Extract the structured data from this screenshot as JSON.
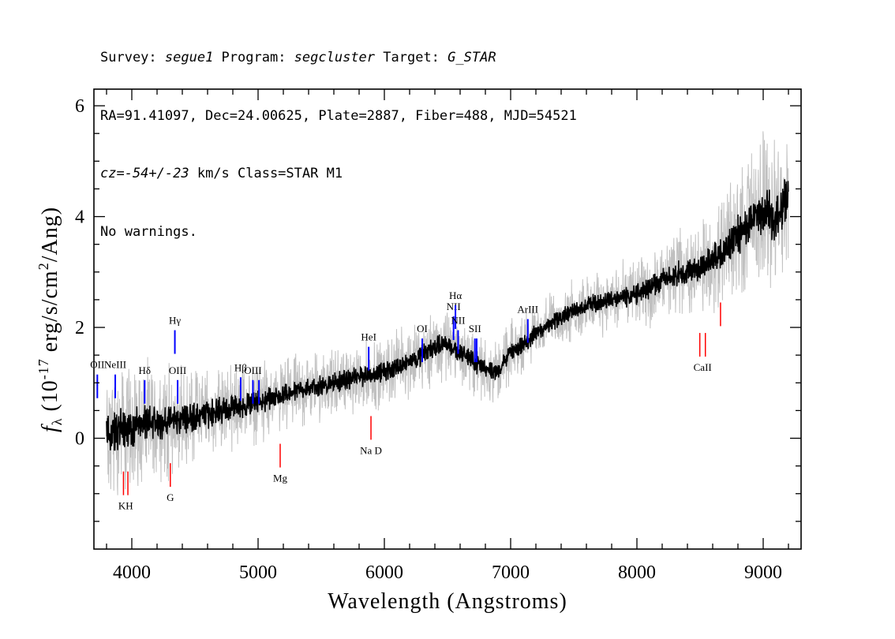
{
  "header": {
    "line1": {
      "p1": "Survey: ",
      "survey": "segue1",
      "p2": " Program: ",
      "program": "segcluster",
      "p3": " Target: ",
      "target": "G_STAR"
    },
    "line2": "RA=91.41097, Dec=24.00625, Plate=2887, Fiber=488, MJD=54521",
    "line3": {
      "cz": "cz=-54+/-23",
      "rest": " km/s Class=STAR M1"
    },
    "line4": "No warnings."
  },
  "chart_data": {
    "type": "line",
    "xlabel": "Wavelength (Angstroms)",
    "ylabel_parts": {
      "f": "f",
      "sub": "λ",
      "pre": " (10",
      "exp": "-17",
      "mid": " erg/s/cm",
      "exp2": "2",
      "post": "/Ang)"
    },
    "xlim": [
      3700,
      9300
    ],
    "ylim": [
      -2,
      6.3
    ],
    "x_ticks": [
      4000,
      5000,
      6000,
      7000,
      8000,
      9000
    ],
    "x_tick_labels": [
      "4000",
      "5000",
      "6000",
      "7000",
      "8000",
      "9000"
    ],
    "y_ticks": [
      0,
      2,
      4,
      6
    ],
    "y_tick_labels": [
      "0",
      "2",
      "4",
      "6"
    ],
    "series": [
      {
        "role": "flux",
        "color": "#000000",
        "x": [
          3800,
          3900,
          4000,
          4100,
          4200,
          4300,
          4400,
          4500,
          4600,
          4700,
          4800,
          4900,
          5000,
          5100,
          5200,
          5300,
          5400,
          5500,
          5600,
          5700,
          5800,
          5900,
          6000,
          6100,
          6200,
          6300,
          6400,
          6500,
          6600,
          6700,
          6800,
          6900,
          7000,
          7100,
          7200,
          7300,
          7400,
          7500,
          7600,
          7700,
          7800,
          7900,
          8000,
          8100,
          8200,
          8300,
          8400,
          8500,
          8600,
          8700,
          8800,
          8900,
          9000,
          9100,
          9200
        ],
        "y": [
          0.0,
          0.15,
          0.2,
          0.25,
          0.3,
          0.3,
          0.35,
          0.4,
          0.45,
          0.5,
          0.55,
          0.6,
          0.65,
          0.7,
          0.75,
          0.85,
          0.9,
          0.95,
          1.0,
          1.05,
          1.1,
          1.15,
          1.2,
          1.3,
          1.4,
          1.5,
          1.65,
          1.7,
          1.55,
          1.4,
          1.25,
          1.2,
          1.55,
          1.7,
          1.9,
          2.05,
          2.2,
          2.3,
          2.4,
          2.45,
          2.5,
          2.55,
          2.6,
          2.7,
          2.85,
          2.95,
          3.0,
          3.1,
          3.2,
          3.4,
          3.7,
          3.9,
          4.1,
          4.0,
          4.3
        ]
      },
      {
        "role": "error",
        "color": "#c0c0c0",
        "x": [
          3800,
          4000,
          4500,
          5000,
          5500,
          6000,
          6500,
          7000,
          7500,
          8000,
          8500,
          9000,
          9200
        ],
        "y": [
          0.9,
          0.75,
          0.55,
          0.45,
          0.4,
          0.4,
          0.4,
          0.35,
          0.35,
          0.4,
          0.5,
          0.9,
          1.0
        ]
      }
    ],
    "emission_lines": [
      {
        "label": "OII",
        "wavelength": 3727,
        "y": 1.15,
        "color": "#0000ff"
      },
      {
        "label": "NeIII",
        "wavelength": 3869,
        "y": 1.15,
        "color": "#0000ff"
      },
      {
        "label": "Hδ",
        "wavelength": 4102,
        "y": 1.05,
        "color": "#0000ff"
      },
      {
        "label": "Hγ",
        "wavelength": 4341,
        "y": 1.95,
        "color": "#0000ff"
      },
      {
        "label": "OIII",
        "wavelength": 4363,
        "y": 1.05,
        "color": "#0000ff"
      },
      {
        "label": "Hβ",
        "wavelength": 4862,
        "y": 1.1,
        "color": "#0000ff"
      },
      {
        "label": "OIII",
        "wavelength": 4959,
        "y": 1.05,
        "color": "#0000ff"
      },
      {
        "label": "",
        "wavelength": 5007,
        "y": 1.05,
        "color": "#0000ff"
      },
      {
        "label": "HeI",
        "wavelength": 5876,
        "y": 1.65,
        "color": "#0000ff"
      },
      {
        "label": "OI",
        "wavelength": 6300,
        "y": 1.8,
        "color": "#0000ff"
      },
      {
        "label": "NII",
        "wavelength": 6548,
        "y": 2.2,
        "color": "#0000ff"
      },
      {
        "label": "Hα",
        "wavelength": 6563,
        "y": 2.4,
        "color": "#0000ff"
      },
      {
        "label": "NII",
        "wavelength": 6584,
        "y": 1.95,
        "color": "#0000ff"
      },
      {
        "label": "SII",
        "wavelength": 6717,
        "y": 1.8,
        "color": "#0000ff"
      },
      {
        "label": "",
        "wavelength": 6731,
        "y": 1.8,
        "color": "#0000ff"
      },
      {
        "label": "ArIII",
        "wavelength": 7136,
        "y": 2.15,
        "color": "#0000ff"
      }
    ],
    "absorption_lines": [
      {
        "label": "K",
        "wavelength": 3934,
        "y": -0.6,
        "color": "#ff0000"
      },
      {
        "label": "H",
        "wavelength": 3969,
        "y": -0.6,
        "color": "#ff0000"
      },
      {
        "label": "G",
        "wavelength": 4305,
        "y": -0.45,
        "color": "#ff0000"
      },
      {
        "label": "Mg",
        "wavelength": 5175,
        "y": -0.1,
        "color": "#ff0000"
      },
      {
        "label": "Na D",
        "wavelength": 5894,
        "y": 0.4,
        "color": "#ff0000"
      },
      {
        "label": "CaII",
        "wavelength": 8498,
        "y": 1.9,
        "color": "#ff0000"
      },
      {
        "label": "",
        "wavelength": 8542,
        "y": 1.9,
        "color": "#ff0000"
      },
      {
        "label": "",
        "wavelength": 8662,
        "y": 2.45,
        "color": "#ff0000"
      }
    ]
  }
}
